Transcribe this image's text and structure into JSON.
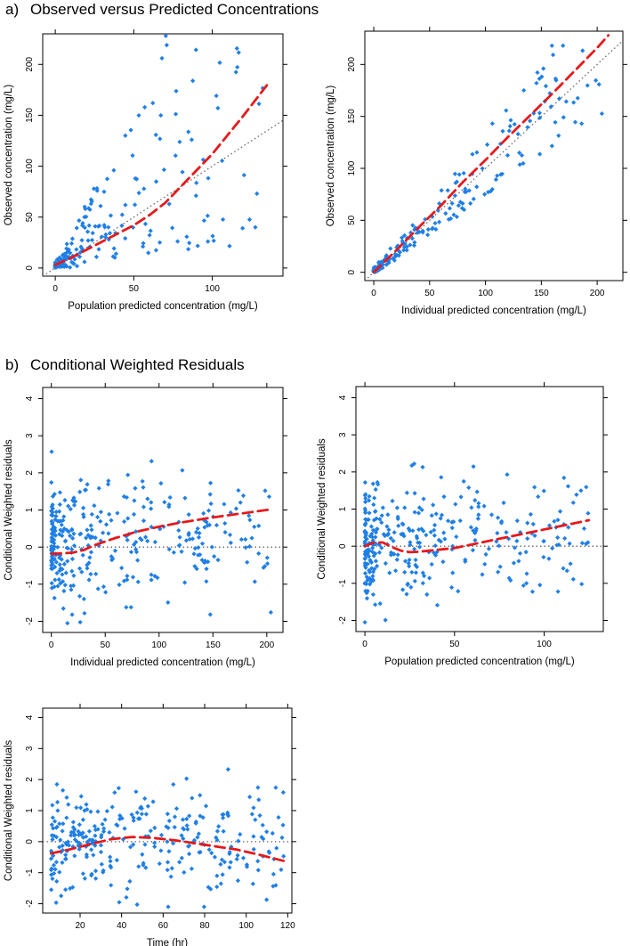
{
  "section_a": {
    "label": "a)",
    "title": "Observed versus Predicted Concentrations"
  },
  "section_b": {
    "label": "b)",
    "title": "Conditional Weighted Residuals"
  },
  "colors": {
    "points": "#1f7fe6",
    "smooth": "#e41a1c",
    "reference": "#666666",
    "frame": "#000000"
  },
  "chart_data": [
    {
      "id": "a1",
      "type": "scatter",
      "xlabel": "Population predicted concentration (mg/L)",
      "ylabel": "Observed concentration (mg/L)",
      "xlim": [
        -8,
        145
      ],
      "ylim": [
        -8,
        230
      ],
      "xticks": [
        0,
        50,
        100
      ],
      "yticks": [
        0,
        50,
        100,
        150,
        200
      ],
      "reference": {
        "kind": "identity",
        "from": [
          -8,
          -8
        ],
        "to": [
          145,
          145
        ]
      },
      "smooth": {
        "x": [
          0,
          10,
          20,
          30,
          40,
          50,
          60,
          70,
          80,
          100,
          120,
          135
        ],
        "y": [
          3,
          10,
          18,
          26,
          34,
          42,
          52,
          64,
          80,
          112,
          150,
          180
        ]
      },
      "gen": {
        "kind": "obs",
        "seed": 11,
        "n": 230,
        "xmax": 135,
        "lo": 0.2,
        "hi": 3.2
      }
    },
    {
      "id": "a2",
      "type": "scatter",
      "xlabel": "Individual predicted concentration (mg/L)",
      "ylabel": "Observed concentration (mg/L)",
      "xlim": [
        -8,
        223
      ],
      "ylim": [
        -8,
        232
      ],
      "xticks": [
        0,
        50,
        100,
        150,
        200
      ],
      "yticks": [
        0,
        50,
        100,
        150,
        200
      ],
      "reference": {
        "kind": "identity",
        "from": [
          -8,
          -8
        ],
        "to": [
          223,
          223
        ]
      },
      "smooth": {
        "x": [
          0,
          20,
          40,
          60,
          80,
          100,
          120,
          140,
          160,
          180,
          200,
          210
        ],
        "y": [
          0,
          21,
          43,
          64,
          87,
          108,
          130,
          151,
          172,
          194,
          216,
          228
        ]
      },
      "gen": {
        "kind": "obs",
        "seed": 23,
        "n": 230,
        "xmax": 205,
        "lo": 0.75,
        "hi": 1.35
      }
    },
    {
      "id": "b1",
      "type": "scatter",
      "xlabel": "Individual predicted concentration (mg/L)",
      "ylabel": "Conditional Weighted residuals",
      "xlim": [
        -8,
        215
      ],
      "ylim": [
        -2.3,
        4.3
      ],
      "xticks": [
        0,
        50,
        100,
        150,
        200
      ],
      "yticks": [
        -2,
        -1,
        0,
        1,
        2,
        3,
        4
      ],
      "reference": {
        "kind": "zero"
      },
      "smooth": {
        "x": [
          0,
          10,
          20,
          30,
          40,
          60,
          80,
          100,
          120,
          150,
          180,
          205
        ],
        "y": [
          -0.18,
          -0.17,
          -0.15,
          -0.08,
          0.05,
          0.25,
          0.42,
          0.55,
          0.66,
          0.8,
          0.92,
          1.02
        ]
      },
      "gen": {
        "kind": "res",
        "seed": 37,
        "n": 320,
        "xmax": 205
      }
    },
    {
      "id": "b2",
      "type": "scatter",
      "xlabel": "Population predicted concentration (mg/L)",
      "ylabel": "Conditional Weighted residuals",
      "xlim": [
        -5,
        133
      ],
      "ylim": [
        -2.3,
        4.3
      ],
      "xticks": [
        0,
        50,
        100
      ],
      "yticks": [
        -2,
        -1,
        0,
        1,
        2,
        3,
        4
      ],
      "reference": {
        "kind": "zero"
      },
      "smooth": {
        "x": [
          0,
          5,
          10,
          15,
          20,
          25,
          30,
          40,
          50,
          60,
          70,
          80,
          100,
          125
        ],
        "y": [
          0.0,
          0.1,
          0.1,
          -0.02,
          -0.12,
          -0.16,
          -0.15,
          -0.1,
          -0.05,
          0.05,
          0.15,
          0.25,
          0.45,
          0.7
        ]
      },
      "gen": {
        "kind": "res",
        "seed": 41,
        "n": 320,
        "xmax": 125
      }
    },
    {
      "id": "b3",
      "type": "scatter",
      "xlabel": "Time (hr)",
      "ylabel": "Conditional Weighted residuals",
      "xlim": [
        2,
        122
      ],
      "ylim": [
        -2.3,
        4.3
      ],
      "xticks": [
        20,
        40,
        60,
        80,
        100,
        120
      ],
      "yticks": [
        -2,
        -1,
        0,
        1,
        2,
        3,
        4
      ],
      "reference": {
        "kind": "zero"
      },
      "smooth": {
        "x": [
          6,
          15,
          25,
          35,
          45,
          55,
          65,
          75,
          85,
          95,
          105,
          118
        ],
        "y": [
          -0.38,
          -0.25,
          -0.08,
          0.08,
          0.15,
          0.12,
          0.05,
          -0.05,
          -0.15,
          -0.25,
          -0.4,
          -0.62
        ]
      },
      "gen": {
        "kind": "time",
        "seed": 53,
        "n": 300,
        "xmin": 6,
        "xmax": 118
      }
    }
  ]
}
